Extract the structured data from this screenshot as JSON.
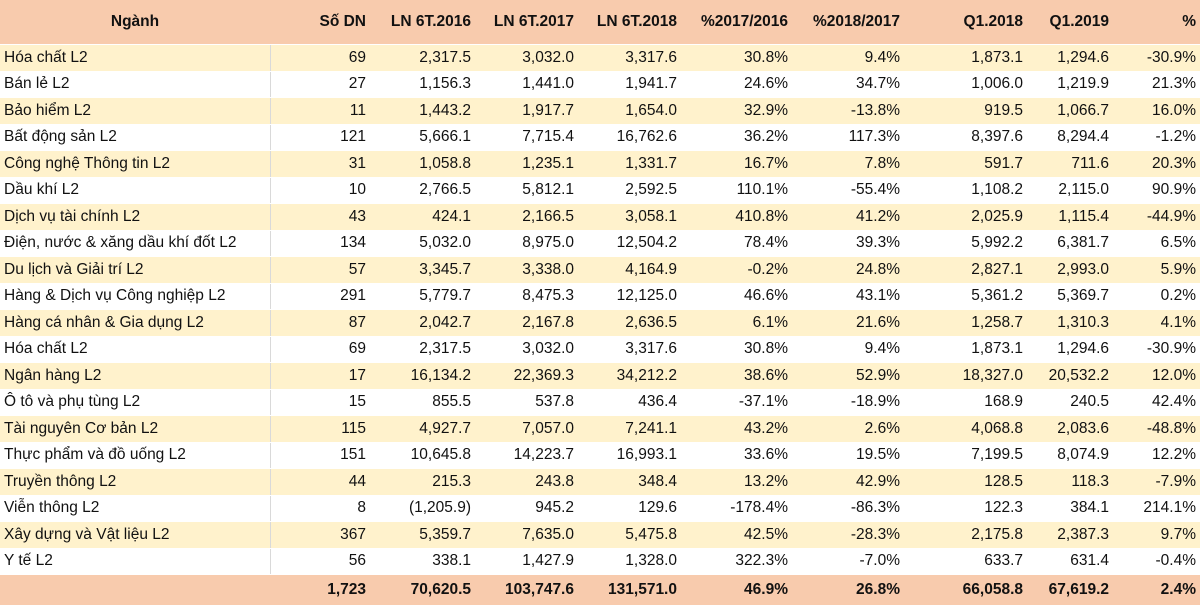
{
  "headers": [
    "Ngành",
    "Số DN",
    "LN 6T.2016",
    "LN 6T.2017",
    "LN 6T.2018",
    "%2017/2016",
    "%2018/2017",
    "Q1.2018",
    "Q1.2019",
    "%"
  ],
  "rows": [
    [
      "Hóa chất L2",
      "69",
      "2,317.5",
      "3,032.0",
      "3,317.6",
      "30.8%",
      "9.4%",
      "1,873.1",
      "1,294.6",
      "-30.9%"
    ],
    [
      "Bán lẻ L2",
      "27",
      "1,156.3",
      "1,441.0",
      "1,941.7",
      "24.6%",
      "34.7%",
      "1,006.0",
      "1,219.9",
      "21.3%"
    ],
    [
      "Bảo hiểm L2",
      "11",
      "1,443.2",
      "1,917.7",
      "1,654.0",
      "32.9%",
      "-13.8%",
      "919.5",
      "1,066.7",
      "16.0%"
    ],
    [
      "Bất động sản L2",
      "121",
      "5,666.1",
      "7,715.4",
      "16,762.6",
      "36.2%",
      "117.3%",
      "8,397.6",
      "8,294.4",
      "-1.2%"
    ],
    [
      "Công nghệ Thông tin L2",
      "31",
      "1,058.8",
      "1,235.1",
      "1,331.7",
      "16.7%",
      "7.8%",
      "591.7",
      "711.6",
      "20.3%"
    ],
    [
      "Dầu khí L2",
      "10",
      "2,766.5",
      "5,812.1",
      "2,592.5",
      "110.1%",
      "-55.4%",
      "1,108.2",
      "2,115.0",
      "90.9%"
    ],
    [
      "Dịch vụ tài chính L2",
      "43",
      "424.1",
      "2,166.5",
      "3,058.1",
      "410.8%",
      "41.2%",
      "2,025.9",
      "1,115.4",
      "-44.9%"
    ],
    [
      "Điện, nước & xăng dầu khí đốt L2",
      "134",
      "5,032.0",
      "8,975.0",
      "12,504.2",
      "78.4%",
      "39.3%",
      "5,992.2",
      "6,381.7",
      "6.5%"
    ],
    [
      "Du lịch và Giải trí L2",
      "57",
      "3,345.7",
      "3,338.0",
      "4,164.9",
      "-0.2%",
      "24.8%",
      "2,827.1",
      "2,993.0",
      "5.9%"
    ],
    [
      "Hàng & Dịch vụ Công nghiệp L2",
      "291",
      "5,779.7",
      "8,475.3",
      "12,125.0",
      "46.6%",
      "43.1%",
      "5,361.2",
      "5,369.7",
      "0.2%"
    ],
    [
      "Hàng cá nhân & Gia dụng L2",
      "87",
      "2,042.7",
      "2,167.8",
      "2,636.5",
      "6.1%",
      "21.6%",
      "1,258.7",
      "1,310.3",
      "4.1%"
    ],
    [
      "Hóa chất L2",
      "69",
      "2,317.5",
      "3,032.0",
      "3,317.6",
      "30.8%",
      "9.4%",
      "1,873.1",
      "1,294.6",
      "-30.9%"
    ],
    [
      "Ngân hàng L2",
      "17",
      "16,134.2",
      "22,369.3",
      "34,212.2",
      "38.6%",
      "52.9%",
      "18,327.0",
      "20,532.2",
      "12.0%"
    ],
    [
      "Ô tô và phụ tùng L2",
      "15",
      "855.5",
      "537.8",
      "436.4",
      "-37.1%",
      "-18.9%",
      "168.9",
      "240.5",
      "42.4%"
    ],
    [
      "Tài nguyên Cơ bản L2",
      "115",
      "4,927.7",
      "7,057.0",
      "7,241.1",
      "43.2%",
      "2.6%",
      "4,068.8",
      "2,083.6",
      "-48.8%"
    ],
    [
      "Thực phẩm và đồ uống L2",
      "151",
      "10,645.8",
      "14,223.7",
      "16,993.1",
      "33.6%",
      "19.5%",
      "7,199.5",
      "8,074.9",
      "12.2%"
    ],
    [
      "Truyền thông L2",
      "44",
      "215.3",
      "243.8",
      "348.4",
      "13.2%",
      "42.9%",
      "128.5",
      "118.3",
      "-7.9%"
    ],
    [
      "Viễn thông L2",
      "8",
      "(1,205.9)",
      "945.2",
      "129.6",
      "-178.4%",
      "-86.3%",
      "122.3",
      "384.1",
      "214.1%"
    ],
    [
      "Xây dựng và Vật liệu L2",
      "367",
      "5,359.7",
      "7,635.0",
      "5,475.8",
      "42.5%",
      "-28.3%",
      "2,175.8",
      "2,387.3",
      "9.7%"
    ],
    [
      "Y tế L2",
      "56",
      "338.1",
      "1,427.9",
      "1,328.0",
      "322.3%",
      "-7.0%",
      "633.7",
      "631.4",
      "-0.4%"
    ]
  ],
  "total": [
    "",
    "1,723",
    "70,620.5",
    "103,747.6",
    "131,571.0",
    "46.9%",
    "26.8%",
    "66,058.8",
    "67,619.2",
    "2.4%"
  ]
}
